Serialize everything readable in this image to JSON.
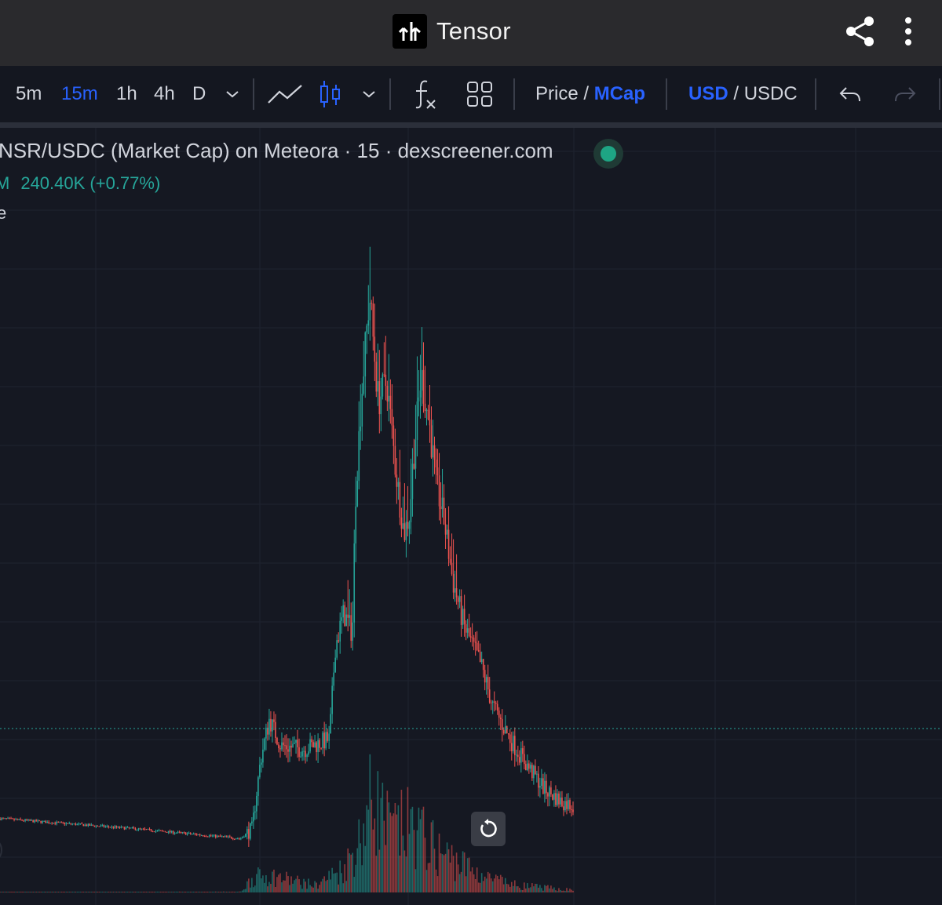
{
  "app": {
    "name": "Tensor"
  },
  "header": {
    "share_icon": "share-icon",
    "more_icon": "more-vertical-icon"
  },
  "toolbar": {
    "intervals": [
      {
        "label": "5m",
        "active": false
      },
      {
        "label": "15m",
        "active": true
      },
      {
        "label": "1h",
        "active": false
      },
      {
        "label": "4h",
        "active": false
      },
      {
        "label": "D",
        "active": false
      }
    ],
    "price_toggle": {
      "left": "Price",
      "sep": " / ",
      "right": "MCap",
      "active": "MCap"
    },
    "currency_toggle": {
      "left": "USD",
      "sep": " / ",
      "right": "USDC",
      "active": "USD"
    },
    "icons": [
      "chevron-down-icon",
      "line-chart-icon",
      "candles-icon",
      "chevron-down-icon",
      "indicators-icon",
      "layout-grid-icon",
      "undo-icon",
      "redo-icon"
    ]
  },
  "legend": {
    "title": "NSR/USDC (Market Cap) on Meteora · 15 · dexscreener.com",
    "value_prefix": "M",
    "value": "240.40K (+0.77%)",
    "extra": "e"
  },
  "colors": {
    "up": "#26a69a",
    "down": "#ef5350",
    "accent": "#2962ff",
    "bg": "#151822"
  },
  "chart_data": {
    "type": "candlestick",
    "title": "NSR/USDC (Market Cap) on Meteora · 15 · dexscreener.com",
    "last_value": "240.40K",
    "change_pct": "+0.77%",
    "grid": true,
    "series_close_shape": [
      [
        0,
        0.07
      ],
      [
        0.23,
        0.055
      ],
      [
        0.42,
        0.04
      ],
      [
        0.44,
        0.055
      ],
      [
        0.455,
        0.16
      ],
      [
        0.47,
        0.22
      ],
      [
        0.49,
        0.18
      ],
      [
        0.53,
        0.175
      ],
      [
        0.575,
        0.19
      ],
      [
        0.585,
        0.33
      ],
      [
        0.6,
        0.38
      ],
      [
        0.615,
        0.35
      ],
      [
        0.62,
        0.55
      ],
      [
        0.63,
        0.7
      ],
      [
        0.645,
        0.86
      ],
      [
        0.66,
        0.7
      ],
      [
        0.675,
        0.73
      ],
      [
        0.69,
        0.6
      ],
      [
        0.705,
        0.5
      ],
      [
        0.715,
        0.53
      ],
      [
        0.72,
        0.6
      ],
      [
        0.735,
        0.74
      ],
      [
        0.75,
        0.66
      ],
      [
        0.76,
        0.58
      ],
      [
        0.775,
        0.52
      ],
      [
        0.79,
        0.43
      ],
      [
        0.81,
        0.36
      ],
      [
        0.84,
        0.3
      ],
      [
        0.86,
        0.24
      ],
      [
        0.89,
        0.19
      ],
      [
        0.92,
        0.15
      ],
      [
        0.95,
        0.115
      ],
      [
        0.98,
        0.095
      ],
      [
        1,
        0.09
      ]
    ],
    "volume_shape": [
      [
        0,
        0.003
      ],
      [
        0.42,
        0.005
      ],
      [
        0.44,
        0.12
      ],
      [
        0.47,
        0.14
      ],
      [
        0.55,
        0.06
      ],
      [
        0.6,
        0.2
      ],
      [
        0.63,
        0.45
      ],
      [
        0.65,
        0.8
      ],
      [
        0.68,
        0.5
      ],
      [
        0.72,
        0.55
      ],
      [
        0.76,
        0.35
      ],
      [
        0.8,
        0.25
      ],
      [
        0.85,
        0.12
      ],
      [
        0.9,
        0.06
      ],
      [
        1,
        0.02
      ]
    ]
  }
}
